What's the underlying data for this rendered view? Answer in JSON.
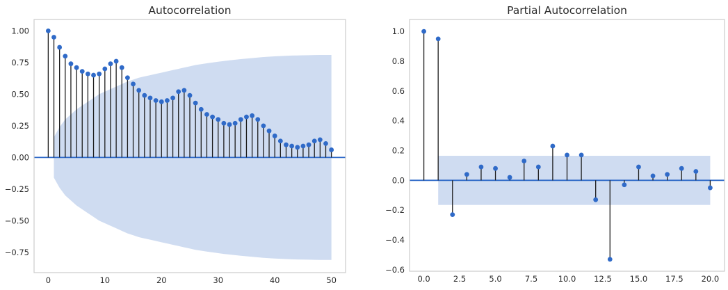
{
  "figure": {
    "background": "#ffffff"
  },
  "colors": {
    "marker": "#2f6ac8",
    "zero_line": "#2f6ac8",
    "band": "#cfdcf1",
    "stem": "#1c1c1c",
    "spine": "#cccccc",
    "text": "#2b2b2b"
  },
  "chart_data": [
    {
      "type": "stem",
      "title": "Autocorrelation",
      "x": [
        0,
        1,
        2,
        3,
        4,
        5,
        6,
        7,
        8,
        9,
        10,
        11,
        12,
        13,
        14,
        15,
        16,
        17,
        18,
        19,
        20,
        21,
        22,
        23,
        24,
        25,
        26,
        27,
        28,
        29,
        30,
        31,
        32,
        33,
        34,
        35,
        36,
        37,
        38,
        39,
        40,
        41,
        42,
        43,
        44,
        45,
        46,
        47,
        48,
        49,
        50
      ],
      "values": [
        1.0,
        0.95,
        0.87,
        0.8,
        0.74,
        0.71,
        0.68,
        0.66,
        0.65,
        0.66,
        0.7,
        0.74,
        0.76,
        0.71,
        0.63,
        0.58,
        0.53,
        0.49,
        0.47,
        0.45,
        0.44,
        0.45,
        0.47,
        0.52,
        0.53,
        0.49,
        0.43,
        0.38,
        0.34,
        0.32,
        0.3,
        0.27,
        0.26,
        0.27,
        0.3,
        0.32,
        0.33,
        0.3,
        0.25,
        0.21,
        0.17,
        0.13,
        0.1,
        0.09,
        0.08,
        0.09,
        0.1,
        0.13,
        0.14,
        0.11,
        0.06
      ],
      "band": {
        "shape": "fan",
        "x": [
          1,
          2,
          3,
          4,
          5,
          6,
          7,
          8,
          9,
          10,
          11,
          12,
          13,
          14,
          15,
          16,
          17,
          18,
          19,
          20,
          21,
          22,
          23,
          24,
          25,
          26,
          27,
          28,
          29,
          30,
          31,
          32,
          33,
          34,
          35,
          36,
          37,
          38,
          39,
          40,
          41,
          42,
          43,
          44,
          45,
          46,
          47,
          48,
          49,
          50
        ],
        "halfwidth": [
          0.16,
          0.24,
          0.3,
          0.34,
          0.38,
          0.41,
          0.44,
          0.47,
          0.5,
          0.52,
          0.54,
          0.56,
          0.58,
          0.6,
          0.615,
          0.63,
          0.64,
          0.65,
          0.66,
          0.67,
          0.68,
          0.69,
          0.7,
          0.71,
          0.72,
          0.73,
          0.737,
          0.744,
          0.75,
          0.756,
          0.762,
          0.767,
          0.772,
          0.777,
          0.781,
          0.785,
          0.789,
          0.793,
          0.796,
          0.799,
          0.801,
          0.803,
          0.805,
          0.806,
          0.807,
          0.808,
          0.809,
          0.81,
          0.81,
          0.81
        ]
      },
      "xlim": [
        -2.5,
        52.5
      ],
      "ylim": [
        -0.91,
        1.09
      ],
      "xtick_values": [
        0,
        10,
        20,
        30,
        40,
        50
      ],
      "xtick_labels": [
        "0",
        "10",
        "20",
        "30",
        "40",
        "50"
      ],
      "ytick_values": [
        1.0,
        0.75,
        0.5,
        0.25,
        0.0,
        -0.25,
        -0.5,
        -0.75
      ],
      "ytick_labels": [
        "1.00",
        "0.75",
        "0.50",
        "0.25",
        "0.00",
        "−0.25",
        "−0.50",
        "−0.75"
      ],
      "grid": false,
      "legend": null
    },
    {
      "type": "stem",
      "title": "Partial Autocorrelation",
      "x": [
        0,
        1,
        2,
        3,
        4,
        5,
        6,
        7,
        8,
        9,
        10,
        11,
        12,
        13,
        14,
        15,
        16,
        17,
        18,
        19,
        20
      ],
      "values": [
        1.0,
        0.95,
        -0.23,
        0.04,
        0.09,
        0.08,
        0.02,
        0.13,
        0.09,
        0.23,
        0.17,
        0.17,
        -0.13,
        -0.53,
        -0.03,
        0.09,
        0.03,
        0.04,
        0.08,
        0.06,
        -0.05
      ],
      "band": {
        "shape": "rect",
        "x0": 1,
        "x1": 20,
        "halfwidth": 0.165
      },
      "xlim": [
        -1,
        21
      ],
      "ylim": [
        -0.61,
        1.08
      ],
      "xtick_values": [
        0,
        2.5,
        5,
        7.5,
        10,
        12.5,
        15,
        17.5,
        20
      ],
      "xtick_labels": [
        "0.0",
        "2.5",
        "5.0",
        "7.5",
        "10.0",
        "12.5",
        "15.0",
        "17.5",
        "20.0"
      ],
      "ytick_values": [
        1.0,
        0.8,
        0.6,
        0.4,
        0.2,
        0.0,
        -0.2,
        -0.4,
        -0.6
      ],
      "ytick_labels": [
        "1.0",
        "0.8",
        "0.6",
        "0.4",
        "0.2",
        "0.0",
        "−0.2",
        "−0.4",
        "−0.6"
      ],
      "grid": false,
      "legend": null
    }
  ]
}
